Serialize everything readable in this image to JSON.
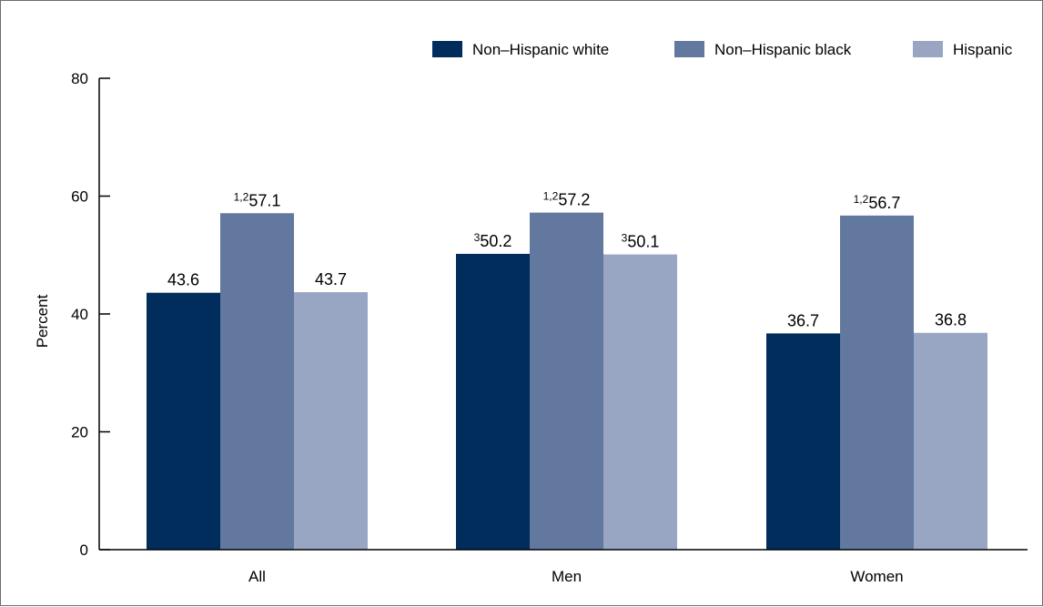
{
  "chart_data": {
    "type": "bar",
    "ylabel": "Percent",
    "ylim": [
      0,
      80
    ],
    "yticks": [
      0,
      20,
      40,
      60,
      80
    ],
    "categories": [
      "All",
      "Men",
      "Women"
    ],
    "series": [
      {
        "name": "Non–Hispanic white",
        "color": "#002d5c",
        "values": [
          43.6,
          50.2,
          36.7
        ],
        "notes": [
          "",
          "3",
          ""
        ]
      },
      {
        "name": "Non–Hispanic black",
        "color": "#62789f",
        "values": [
          57.1,
          57.2,
          56.7
        ],
        "notes": [
          "1,2",
          "1,2",
          "1,2"
        ]
      },
      {
        "name": "Hispanic",
        "color": "#98a6c3",
        "values": [
          43.7,
          50.1,
          36.8
        ],
        "notes": [
          "",
          "3",
          ""
        ]
      }
    ],
    "legend_position": "top-right",
    "grid": false
  }
}
